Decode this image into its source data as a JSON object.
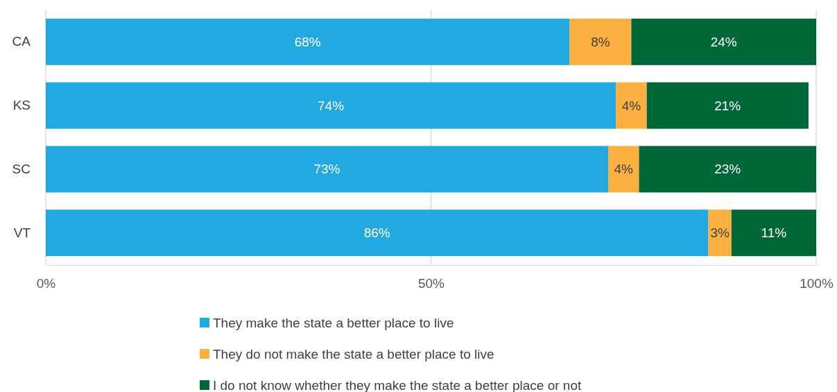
{
  "chart_data": {
    "type": "bar",
    "orientation": "horizontal",
    "stacked": true,
    "categories": [
      "CA",
      "KS",
      "SC",
      "VT"
    ],
    "series": [
      {
        "name": "They make the state a better place to live",
        "color": "#23a9e1",
        "values": [
          68,
          74,
          73,
          86
        ],
        "value_labels": [
          "68%",
          "74%",
          "73%",
          "86%"
        ]
      },
      {
        "name": "They do not make the state a better place to live",
        "color": "#fbb040",
        "values": [
          8,
          4,
          4,
          3
        ],
        "value_labels": [
          "8%",
          "4%",
          "4%",
          "3%"
        ]
      },
      {
        "name": "I do not know whether they make the state a better place or not",
        "color": "#006838",
        "values": [
          24,
          21,
          23,
          11
        ],
        "value_labels": [
          "24%",
          "21%",
          "23%",
          "11%"
        ]
      }
    ],
    "xlim": [
      0,
      100
    ],
    "xticks": [
      {
        "value": 0,
        "label": "0%"
      },
      {
        "value": 50,
        "label": "50%"
      },
      {
        "value": 100,
        "label": "100%"
      }
    ],
    "grid": "x",
    "legend": "bottom"
  }
}
